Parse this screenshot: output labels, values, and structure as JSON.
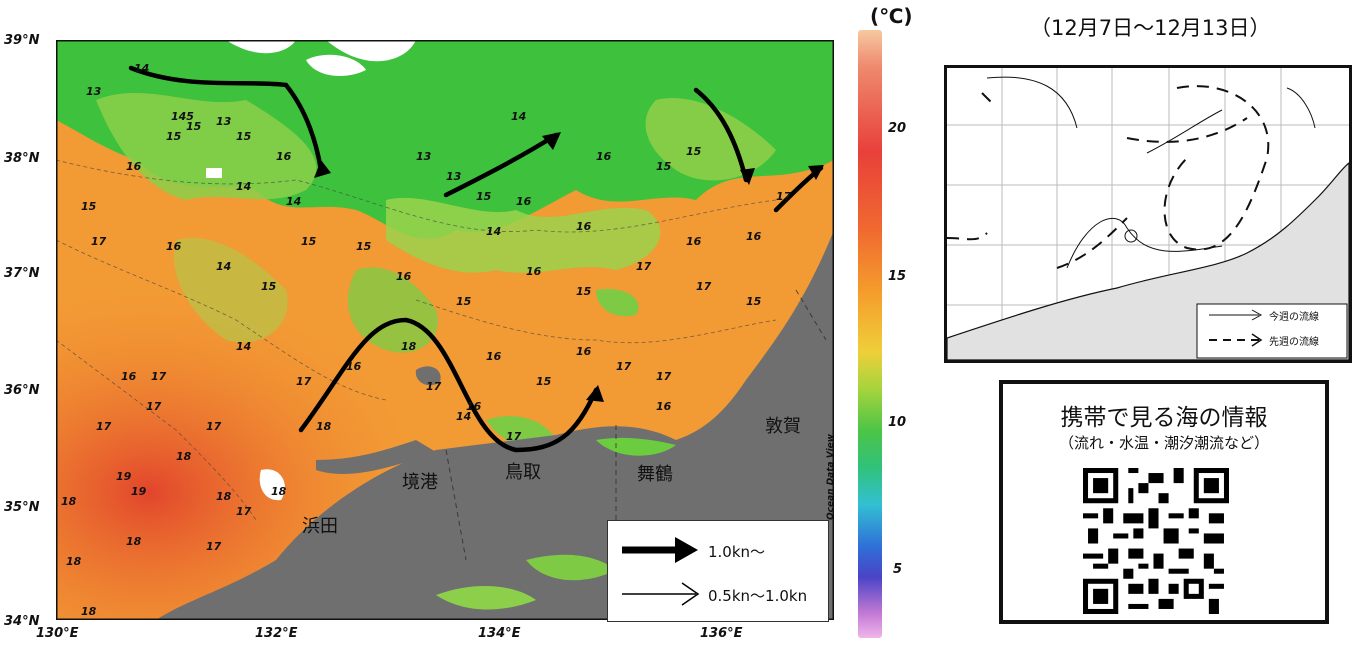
{
  "map": {
    "lat_labels": [
      "39°N",
      "38°N",
      "37°N",
      "36°N",
      "35°N",
      "34°N"
    ],
    "lon_labels": [
      "130°E",
      "132°E",
      "134°E",
      "136°E"
    ],
    "cities": [
      "境港",
      "鳥取",
      "舞鶴",
      "敦賀",
      "浜田"
    ],
    "contour_labels": [
      "13",
      "14",
      "15",
      "16",
      "17",
      "18",
      "19"
    ],
    "credit": "Ocean Data View"
  },
  "colorbar": {
    "unit": "(℃)",
    "labels": [
      "20",
      "15",
      "10",
      "5"
    ]
  },
  "legend": {
    "strong": "1.0kn～",
    "weak": "0.5kn～1.0kn"
  },
  "inset": {
    "period": "（12月7日～12月13日）",
    "this_week": "今週の流線",
    "last_week": "先週の流線"
  },
  "mobile": {
    "title": "携帯で見る海の情報",
    "subtitle": "（流れ・水温・潮汐潮流など）"
  },
  "colors": {
    "cold_green": "#35c43a",
    "mid_green": "#8fd14a",
    "warm_orange": "#f0a030",
    "hot_red": "#e25530",
    "land_gray": "#6f6f6f"
  }
}
